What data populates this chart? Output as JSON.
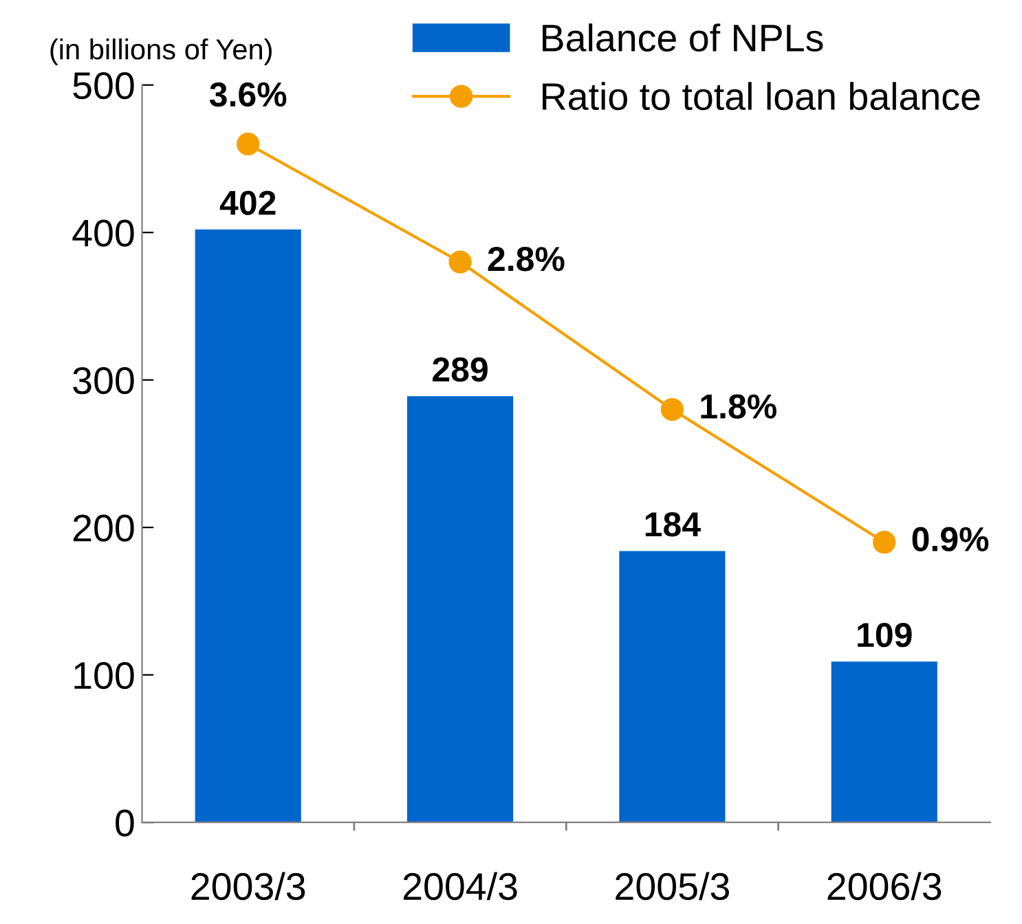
{
  "chart_data": {
    "type": "bar",
    "ylabel": "(in billions of Yen)",
    "categories": [
      "2003/3",
      "2004/3",
      "2005/3",
      "2006/3"
    ],
    "series": [
      {
        "name": "Balance of NPLs",
        "color": "#0066cc",
        "values": [
          402,
          289,
          184,
          109
        ],
        "value_labels": [
          "402",
          "289",
          "184",
          "109"
        ]
      },
      {
        "name": "Ratio to total loan balance",
        "type": "line",
        "axis": "y2",
        "color": "#f5a000",
        "marker": "circle",
        "values": [
          3.6,
          2.8,
          1.8,
          0.9
        ],
        "value_labels": [
          "3.6%",
          "2.8%",
          "1.8%",
          "0.9%"
        ]
      }
    ],
    "ylim": [
      0,
      500
    ],
    "yticks": [
      0,
      100,
      200,
      300,
      400,
      500
    ],
    "y2lim": [
      -1,
      4
    ],
    "legend": "top right",
    "grid": false
  }
}
